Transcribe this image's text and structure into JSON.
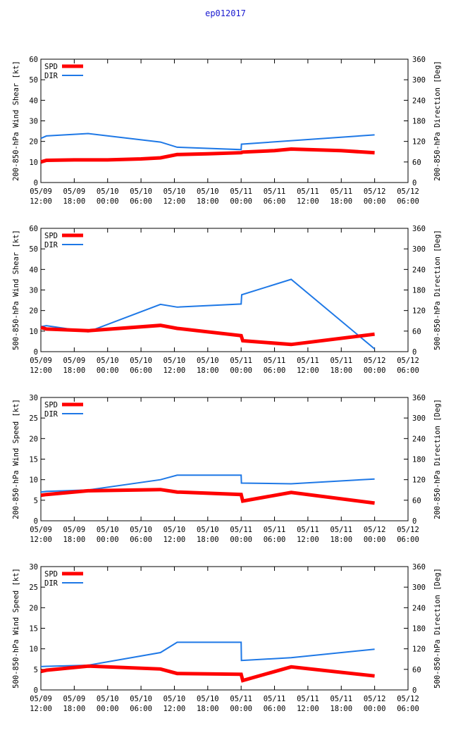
{
  "title": "ep012017",
  "x_ticks": [
    [
      "05/09",
      "12:00"
    ],
    [
      "05/09",
      "18:00"
    ],
    [
      "05/10",
      "00:00"
    ],
    [
      "05/10",
      "06:00"
    ],
    [
      "05/10",
      "12:00"
    ],
    [
      "05/10",
      "18:00"
    ],
    [
      "05/11",
      "00:00"
    ],
    [
      "05/11",
      "06:00"
    ],
    [
      "05/11",
      "12:00"
    ],
    [
      "05/11",
      "18:00"
    ],
    [
      "05/12",
      "00:00"
    ],
    [
      "05/12",
      "06:00"
    ]
  ],
  "colors": {
    "spd": "#ff0000",
    "dir": "#1e78e6",
    "title": "#1a1ad0"
  },
  "chart_data": [
    {
      "type": "line",
      "xlim": [
        0,
        66
      ],
      "ylabel": "200-850-hPa Wind Shear [kt]",
      "y2label": "200-850-hPa Direction [Deg]",
      "ylim": [
        0,
        60
      ],
      "yticks": [
        0,
        10,
        20,
        30,
        40,
        50,
        60
      ],
      "y2lim": [
        0,
        360
      ],
      "y2ticks": [
        0,
        60,
        120,
        180,
        240,
        300,
        360
      ],
      "legend": [
        "SPD",
        "DIR"
      ],
      "series": [
        {
          "name": "SPD",
          "axis": "left",
          "x": [
            0,
            1,
            6,
            12,
            18,
            21.5,
            24.5,
            30,
            36,
            36.3,
            42,
            45,
            54,
            60
          ],
          "y": [
            10,
            10.8,
            11,
            11,
            11.5,
            12,
            13.6,
            14,
            14.5,
            14.8,
            15.5,
            16.3,
            15.5,
            14.5
          ]
        },
        {
          "name": "DIR",
          "axis": "right",
          "x": [
            0,
            1,
            8.5,
            21.5,
            24.5,
            36,
            36.05,
            60
          ],
          "y": [
            129,
            136,
            143,
            118,
            103,
            96,
            112,
            139
          ]
        }
      ]
    },
    {
      "type": "line",
      "xlim": [
        0,
        66
      ],
      "ylabel": "500-850-hPa Wind Shear [kt]",
      "y2label": "500-850-hPa Direction [Deg]",
      "ylim": [
        0,
        60
      ],
      "yticks": [
        0,
        10,
        20,
        30,
        40,
        50,
        60
      ],
      "y2lim": [
        0,
        360
      ],
      "y2ticks": [
        0,
        60,
        120,
        180,
        240,
        300,
        360
      ],
      "legend": [
        "SPD",
        "DIR"
      ],
      "series": [
        {
          "name": "SPD",
          "axis": "left",
          "x": [
            0,
            1,
            8.5,
            21.5,
            24.5,
            36,
            36.3,
            45,
            60
          ],
          "y": [
            11.8,
            11,
            10.2,
            12.8,
            11.3,
            7.8,
            5.3,
            3.5,
            8.5
          ]
        },
        {
          "name": "DIR",
          "axis": "right",
          "x": [
            0,
            1,
            8.5,
            21.5,
            24.5,
            36,
            36.1,
            45,
            60
          ],
          "y": [
            73,
            76,
            58,
            138,
            130,
            139,
            166,
            211,
            8
          ]
        }
      ]
    },
    {
      "type": "line",
      "xlim": [
        0,
        66
      ],
      "ylabel": "200-850-hPa Wind Speed [kt]",
      "y2label": "200-850-hPa Direction [Deg]",
      "ylim": [
        0,
        30
      ],
      "yticks": [
        0,
        5,
        10,
        15,
        20,
        25,
        30
      ],
      "y2lim": [
        0,
        360
      ],
      "y2ticks": [
        0,
        60,
        120,
        180,
        240,
        300,
        360
      ],
      "legend": [
        "SPD",
        "DIR"
      ],
      "series": [
        {
          "name": "SPD",
          "axis": "left",
          "x": [
            0,
            1,
            8.5,
            21.5,
            24.5,
            36,
            36.3,
            45,
            60
          ],
          "y": [
            6.2,
            6.4,
            7.3,
            7.6,
            7,
            6.4,
            4.8,
            6.9,
            4.3
          ]
        },
        {
          "name": "DIR",
          "axis": "right",
          "x": [
            0,
            1,
            8.5,
            21.5,
            24.5,
            36,
            36.05,
            45,
            60
          ],
          "y": [
            84,
            86,
            90,
            120,
            133,
            133,
            110,
            108,
            122
          ]
        }
      ]
    },
    {
      "type": "line",
      "xlim": [
        0,
        66
      ],
      "ylabel": "500-850-hPa Wind Speed [kt]",
      "y2label": "500-850-hPa Direction [Deg]",
      "ylim": [
        0,
        30
      ],
      "yticks": [
        0,
        5,
        10,
        15,
        20,
        25,
        30
      ],
      "y2lim": [
        0,
        360
      ],
      "y2ticks": [
        0,
        60,
        120,
        180,
        240,
        300,
        360
      ],
      "legend": [
        "SPD",
        "DIR"
      ],
      "series": [
        {
          "name": "SPD",
          "axis": "left",
          "x": [
            0,
            1,
            8.5,
            21.5,
            24.5,
            36,
            36.3,
            45,
            60
          ],
          "y": [
            4.5,
            4.8,
            5.8,
            5.1,
            4,
            3.8,
            2.3,
            5.6,
            3.4
          ]
        },
        {
          "name": "DIR",
          "axis": "right",
          "x": [
            0,
            1,
            8.5,
            21.5,
            24.5,
            36,
            36.05,
            45,
            60
          ],
          "y": [
            68,
            69,
            72,
            109,
            139,
            139,
            86,
            94,
            119
          ]
        }
      ]
    }
  ]
}
